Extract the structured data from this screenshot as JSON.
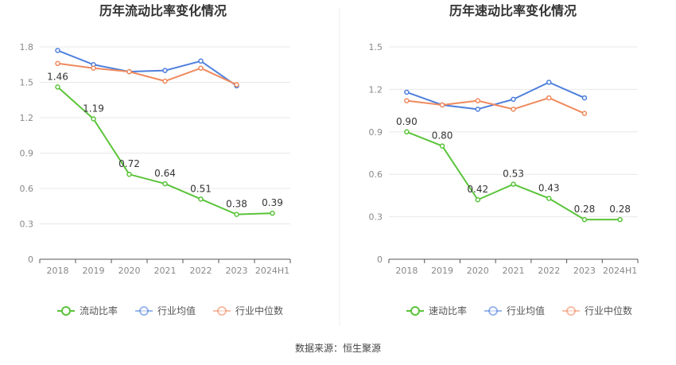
{
  "source": "数据来源：恒生聚源",
  "colors": {
    "main": "#5ac43a",
    "avg": "#4d7fdc",
    "median": "#ef8a5e",
    "grid": "#e8e8e8",
    "axis": "#555555"
  },
  "chart_data": [
    {
      "type": "line",
      "title": "历年流动比率变化情况",
      "categories": [
        "2018",
        "2019",
        "2020",
        "2021",
        "2022",
        "2023",
        "2024H1"
      ],
      "ylim": [
        0,
        1.8
      ],
      "yticks": [
        "0",
        "0.3",
        "0.6",
        "0.9",
        "1.2",
        "1.5",
        "1.8"
      ],
      "grid": true,
      "legend": "bottom",
      "series": [
        {
          "name": "流动比率",
          "values": [
            1.46,
            1.19,
            0.72,
            0.64,
            0.51,
            0.38,
            0.39
          ],
          "labels": [
            "1.46",
            "1.19",
            "0.72",
            "0.64",
            "0.51",
            "0.38",
            "0.39"
          ]
        },
        {
          "name": "行业均值",
          "values": [
            1.77,
            1.65,
            1.59,
            1.6,
            1.68,
            1.47,
            null
          ]
        },
        {
          "name": "行业中位数",
          "values": [
            1.66,
            1.62,
            1.59,
            1.51,
            1.62,
            1.48,
            null
          ]
        }
      ]
    },
    {
      "type": "line",
      "title": "历年速动比率变化情况",
      "categories": [
        "2018",
        "2019",
        "2020",
        "2021",
        "2022",
        "2023",
        "2024H1"
      ],
      "ylim": [
        0,
        1.5
      ],
      "yticks": [
        "0",
        "0.3",
        "0.6",
        "0.9",
        "1.2",
        "1.5"
      ],
      "grid": true,
      "legend": "bottom",
      "series": [
        {
          "name": "速动比率",
          "values": [
            0.9,
            0.8,
            0.42,
            0.53,
            0.43,
            0.28,
            0.28
          ],
          "labels": [
            "0.90",
            "0.80",
            "0.42",
            "0.53",
            "0.43",
            "0.28",
            "0.28"
          ]
        },
        {
          "name": "行业均值",
          "values": [
            1.18,
            1.09,
            1.06,
            1.13,
            1.25,
            1.14,
            null
          ]
        },
        {
          "name": "行业中位数",
          "values": [
            1.12,
            1.09,
            1.12,
            1.06,
            1.14,
            1.03,
            null
          ]
        }
      ]
    }
  ]
}
